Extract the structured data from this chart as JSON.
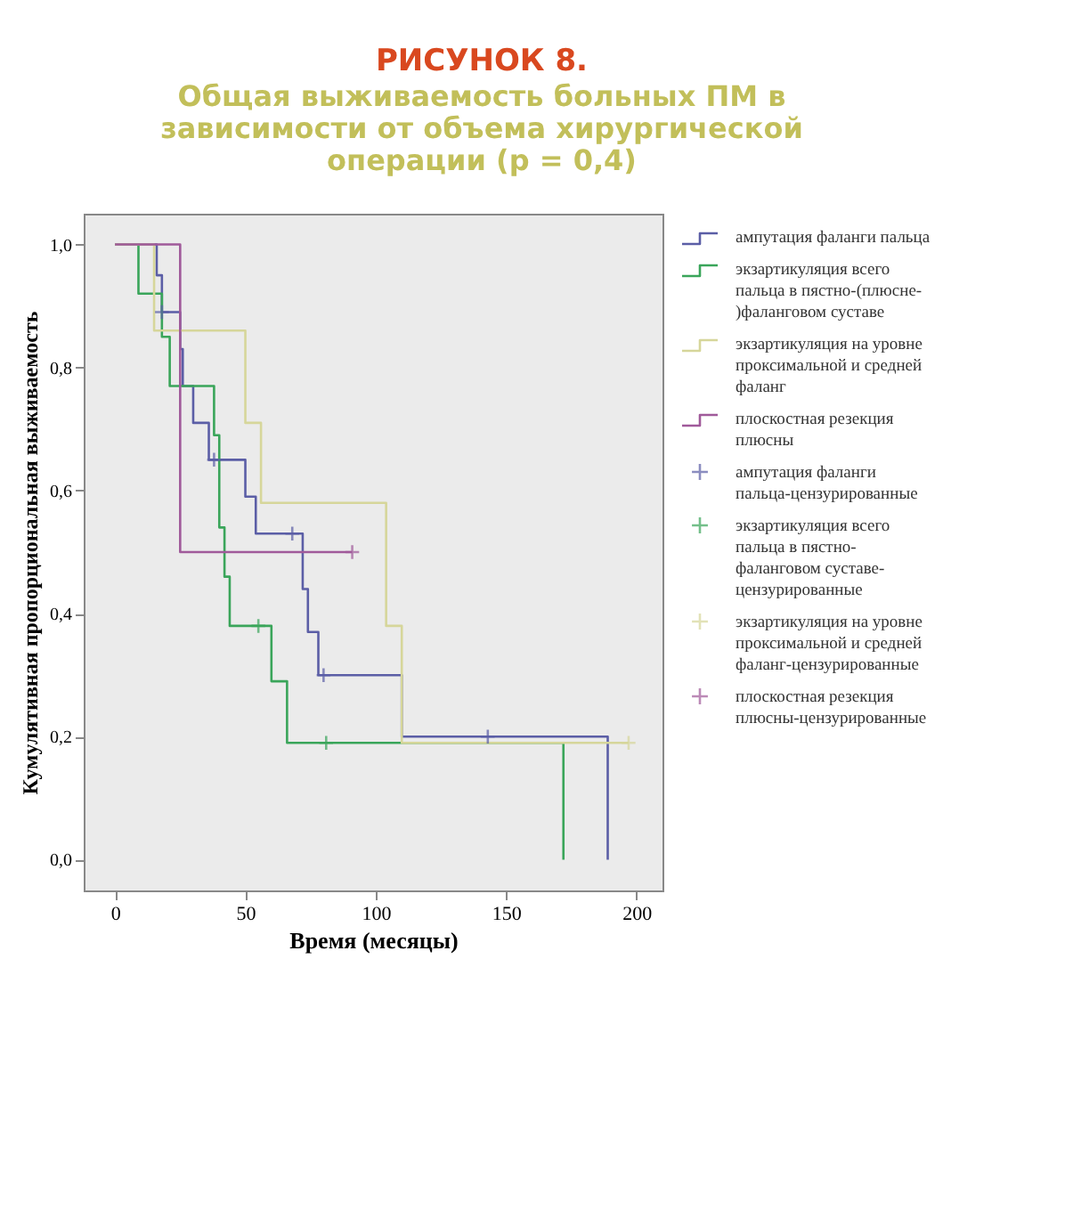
{
  "chart_data": {
    "type": "step",
    "title": "РИСУНОК 8.",
    "subtitle": "Общая выживаемость больных ПМ в зависимости от объема хирургической операции (p = 0,4)",
    "xlabel": "Время (месяцы)",
    "ylabel": "Кумулятивная пропорциональная выживаемость",
    "xlim": [
      -12,
      210
    ],
    "ylim": [
      -0.05,
      1.05
    ],
    "xticks": [
      0,
      50,
      100,
      150,
      200
    ],
    "yticks": [
      {
        "value": 0,
        "label": "0,0"
      },
      {
        "value": 0.2,
        "label": "0,2"
      },
      {
        "value": 0.4,
        "label": "0,4"
      },
      {
        "value": 0.6,
        "label": "0,6"
      },
      {
        "value": 0.8,
        "label": "0,8"
      },
      {
        "value": 1,
        "label": "1,0"
      }
    ],
    "legend": "right",
    "series": [
      {
        "name": "ампутация фаланги пальца",
        "color": "#5b5ea6",
        "x": [
          0,
          16,
          18,
          25,
          26,
          30,
          36,
          50,
          54,
          72,
          74,
          78,
          110,
          189
        ],
        "values": [
          1,
          0.95,
          0.89,
          0.83,
          0.77,
          0.71,
          0.65,
          0.59,
          0.53,
          0.44,
          0.37,
          0.3,
          0.2,
          0
        ]
      },
      {
        "name": "экзартикуляция всего пальца в пястно-(плюсне-)фаланговом суставе",
        "color": "#3aa55a",
        "x": [
          0,
          9,
          18,
          21,
          38,
          40,
          42,
          44,
          60,
          66,
          172
        ],
        "values": [
          1,
          0.92,
          0.85,
          0.77,
          0.69,
          0.54,
          0.46,
          0.38,
          0.29,
          0.19,
          0
        ]
      },
      {
        "name": "экзартикуляция на уровне проксимальной и средней фаланг",
        "color": "#d6d69a",
        "x": [
          0,
          15,
          50,
          56,
          104,
          110,
          197
        ],
        "values": [
          1,
          0.86,
          0.71,
          0.58,
          0.38,
          0.19,
          0.19
        ]
      },
      {
        "name": "плоскостная резекция плюсны",
        "color": "#a05a9a",
        "x": [
          0,
          25,
          91
        ],
        "values": [
          1,
          0.5,
          0.5
        ]
      },
      {
        "name": "ампутация фаланги пальца-цензурированные",
        "type": "scatter",
        "marker": "cross",
        "color": "#5b5ea6",
        "x": [
          18,
          38,
          68,
          80,
          143
        ],
        "values": [
          0.89,
          0.65,
          0.53,
          0.3,
          0.2
        ]
      },
      {
        "name": "экзартикуляция всего пальца в пястно-фаланговом суставе-цензурированные",
        "type": "scatter",
        "marker": "cross",
        "color": "#3aa55a",
        "x": [
          55,
          81
        ],
        "values": [
          0.38,
          0.19
        ]
      },
      {
        "name": "экзартикуляция на уровне проксимальной и средней фаланг-цензурированные",
        "type": "scatter",
        "marker": "cross",
        "color": "#d6d69a",
        "x": [
          197
        ],
        "values": [
          0.19
        ]
      },
      {
        "name": "плоскостная резекция плюсны-цензурированные",
        "type": "scatter",
        "marker": "cross",
        "color": "#a05a9a",
        "x": [
          91
        ],
        "values": [
          0.5
        ]
      }
    ]
  }
}
